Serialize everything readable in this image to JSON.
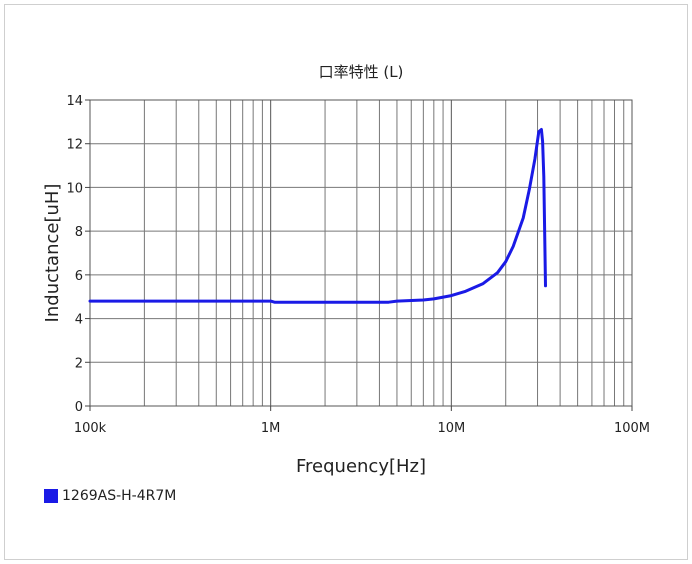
{
  "chart_data": {
    "type": "line",
    "title": "口率特性 (L)",
    "xlabel": "Frequency[Hz]",
    "ylabel": "Inductance[uH]",
    "xscale": "log",
    "xlim": [
      100000,
      100000000
    ],
    "ylim": [
      0,
      14
    ],
    "x_ticks": [
      {
        "value": 100000,
        "label": "100k"
      },
      {
        "value": 1000000,
        "label": "1M"
      },
      {
        "value": 10000000,
        "label": "10M"
      },
      {
        "value": 100000000,
        "label": "100M"
      }
    ],
    "y_ticks": [
      {
        "value": 0,
        "label": "0"
      },
      {
        "value": 2,
        "label": "2"
      },
      {
        "value": 4,
        "label": "4"
      },
      {
        "value": 6,
        "label": "6"
      },
      {
        "value": 8,
        "label": "8"
      },
      {
        "value": 10,
        "label": "10"
      },
      {
        "value": 12,
        "label": "12"
      },
      {
        "value": 14,
        "label": "14"
      }
    ],
    "grid": true,
    "legend_position": "bottom-left",
    "series": [
      {
        "name": "1269AS-H-4R7M",
        "color": "#1a1ae6",
        "x": [
          100000,
          200000,
          500000,
          1000000,
          1050000,
          2000000,
          3000000,
          4500000,
          5000000,
          7000000,
          8000000,
          10000000,
          12000000,
          15000000,
          18000000,
          20000000,
          22000000,
          25000000,
          27000000,
          29000000,
          30500000,
          31500000,
          32000000,
          32500000,
          33200000
        ],
        "y": [
          4.8,
          4.8,
          4.8,
          4.8,
          4.75,
          4.75,
          4.75,
          4.75,
          4.8,
          4.85,
          4.9,
          5.05,
          5.25,
          5.6,
          6.1,
          6.6,
          7.3,
          8.6,
          9.9,
          11.3,
          12.55,
          12.65,
          12.1,
          10.5,
          5.5
        ]
      }
    ]
  }
}
